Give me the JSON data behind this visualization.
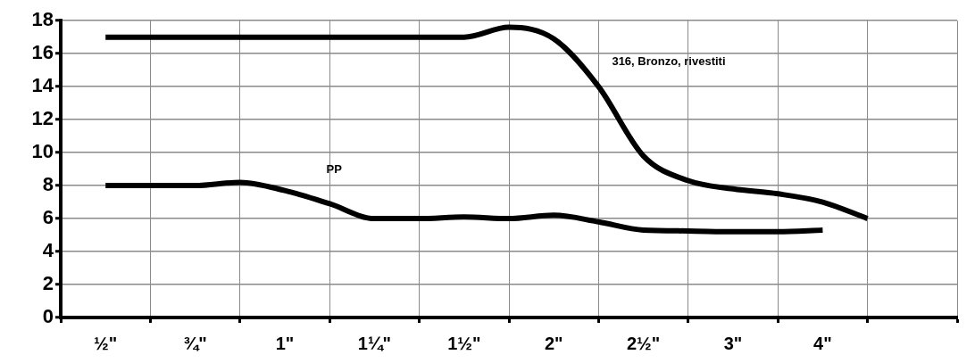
{
  "chart_data": {
    "type": "line",
    "ylim": [
      0,
      18
    ],
    "yticks": [
      0,
      2,
      4,
      6,
      8,
      10,
      12,
      14,
      16,
      18
    ],
    "categories": [
      null,
      "½\"",
      null,
      "¾\"",
      null,
      "1\"",
      null,
      "1¼\"",
      null,
      "1½\"",
      null,
      "2\"",
      null,
      "2½\"",
      null,
      "3\"",
      null,
      "4\"",
      null,
      null,
      null
    ],
    "grid": true,
    "legend": false,
    "marker": "none",
    "line_style": "solid",
    "series": [
      {
        "name": "316, Bronzo, rivestiti",
        "color": "#000000",
        "values": [
          null,
          17,
          17,
          17,
          17,
          17,
          17,
          17,
          17,
          17,
          17.6,
          16.9,
          14.0,
          9.8,
          8.3,
          7.8,
          7.5,
          7.0,
          6.0,
          null,
          null
        ]
      },
      {
        "name": "PP",
        "color": "#000000",
        "values": [
          null,
          8,
          8,
          8,
          8.2,
          7.7,
          6.9,
          6.0,
          6.0,
          6.1,
          6.0,
          6.2,
          5.8,
          5.3,
          5.25,
          5.2,
          5.2,
          5.3,
          null,
          null,
          null
        ]
      }
    ]
  }
}
